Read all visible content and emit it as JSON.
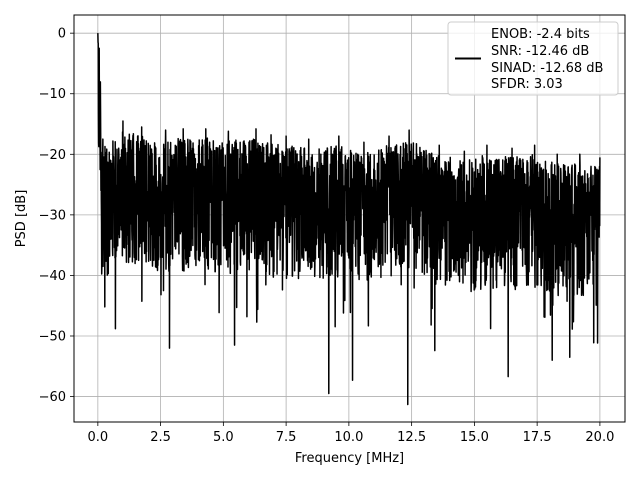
{
  "chart_data": {
    "type": "line",
    "xlabel": "Frequency [MHz]",
    "ylabel": "PSD [dB]",
    "xlim": [
      -0.95,
      21.0
    ],
    "ylim": [
      -64.2,
      3.0
    ],
    "xticks": [
      0.0,
      2.5,
      5.0,
      7.5,
      10.0,
      12.5,
      15.0,
      17.5,
      20.0
    ],
    "xtick_labels": [
      "0.0",
      "2.5",
      "5.0",
      "7.5",
      "10.0",
      "12.5",
      "15.0",
      "17.5",
      "20.0"
    ],
    "yticks": [
      0,
      -10,
      -20,
      -30,
      -40,
      -50,
      -60
    ],
    "ytick_labels": [
      "0",
      "−10",
      "−20",
      "−30",
      "−40",
      "−50",
      "−60"
    ],
    "grid": true,
    "legend_position": "top-right",
    "series": [
      {
        "color": "#000000",
        "description": "PSD spectrum: peak at 0 MHz (0 dB), noise floor roughly -15 to -45 dB across 0-20 MHz",
        "peak": {
          "x": 0.0,
          "y": 0.0
        },
        "notable_minima": [
          {
            "x": 0.28,
            "y": -45.2
          },
          {
            "x": 0.7,
            "y": -48.8
          },
          {
            "x": 2.85,
            "y": -52.0
          },
          {
            "x": 5.45,
            "y": -51.5
          },
          {
            "x": 9.2,
            "y": -59.5
          },
          {
            "x": 10.15,
            "y": -57.3
          },
          {
            "x": 12.35,
            "y": -61.3
          },
          {
            "x": 16.35,
            "y": -56.7
          },
          {
            "x": 18.1,
            "y": -54.0
          },
          {
            "x": 18.8,
            "y": -53.5
          }
        ],
        "notable_maxima": [
          {
            "x": 0.05,
            "y": -2.5
          },
          {
            "x": 0.2,
            "y": -17.5
          },
          {
            "x": 1.0,
            "y": -14.5
          },
          {
            "x": 1.75,
            "y": -15.5
          },
          {
            "x": 2.7,
            "y": -16.0
          },
          {
            "x": 3.4,
            "y": -15.8
          },
          {
            "x": 4.3,
            "y": -15.8
          },
          {
            "x": 5.2,
            "y": -16.2
          },
          {
            "x": 6.3,
            "y": -15.8
          },
          {
            "x": 6.9,
            "y": -16.8
          },
          {
            "x": 7.5,
            "y": -17.0
          },
          {
            "x": 8.4,
            "y": -17.5
          },
          {
            "x": 9.6,
            "y": -17.0
          },
          {
            "x": 10.6,
            "y": -18.0
          },
          {
            "x": 11.6,
            "y": -17.0
          },
          {
            "x": 12.4,
            "y": -16.0
          },
          {
            "x": 13.6,
            "y": -18.5
          },
          {
            "x": 14.6,
            "y": -19.5
          },
          {
            "x": 15.5,
            "y": -18.5
          },
          {
            "x": 16.5,
            "y": -19.0
          },
          {
            "x": 17.4,
            "y": -18.5
          },
          {
            "x": 18.3,
            "y": -20.0
          },
          {
            "x": 19.2,
            "y": -20.0
          },
          {
            "x": 20.0,
            "y": -20.5
          }
        ]
      }
    ],
    "legend_lines": [
      "ENOB: -2.4 bits",
      "SNR: -12.46 dB",
      "SINAD: -12.68 dB",
      "SFDR: 3.03"
    ]
  }
}
